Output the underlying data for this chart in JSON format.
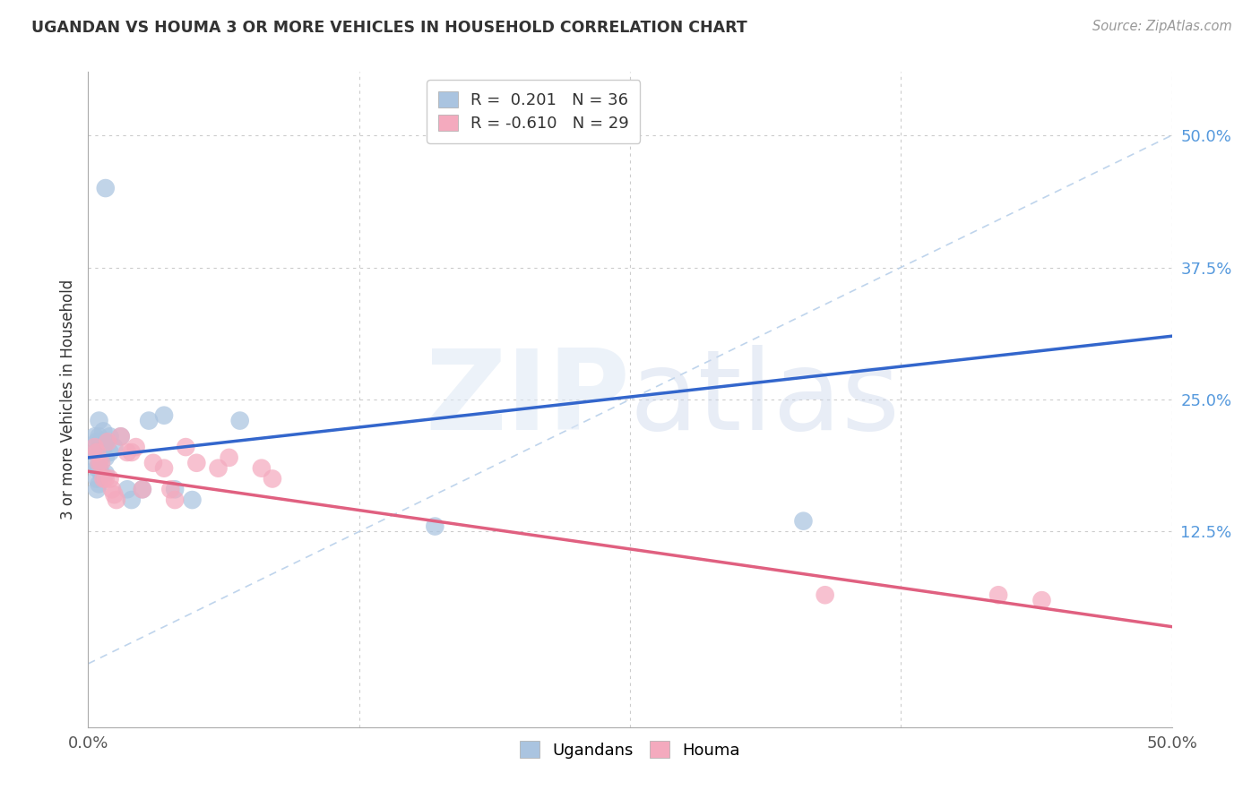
{
  "title": "UGANDAN VS HOUMA 3 OR MORE VEHICLES IN HOUSEHOLD CORRELATION CHART",
  "source": "Source: ZipAtlas.com",
  "ylabel": "3 or more Vehicles in Household",
  "xlim": [
    0.0,
    0.5
  ],
  "ylim": [
    -0.06,
    0.56
  ],
  "ugandan_color": "#aac4e0",
  "houma_color": "#f4aabe",
  "ugandan_line_color": "#3366cc",
  "houma_line_color": "#e06080",
  "trend_line_color": "#b8d0ea",
  "ugandan_line_x0": 0.0,
  "ugandan_line_y0": 0.195,
  "ugandan_line_x1": 0.5,
  "ugandan_line_y1": 0.31,
  "houma_line_x0": 0.0,
  "houma_line_y0": 0.182,
  "houma_line_x1": 0.5,
  "houma_line_y1": 0.035,
  "ugandan_x": [
    0.003,
    0.003,
    0.003,
    0.004,
    0.004,
    0.004,
    0.004,
    0.004,
    0.005,
    0.005,
    0.005,
    0.005,
    0.005,
    0.006,
    0.006,
    0.006,
    0.007,
    0.007,
    0.008,
    0.008,
    0.008,
    0.01,
    0.01,
    0.012,
    0.015,
    0.018,
    0.02,
    0.025,
    0.028,
    0.035,
    0.04,
    0.048,
    0.07,
    0.008,
    0.33,
    0.16
  ],
  "ugandan_y": [
    0.215,
    0.2,
    0.19,
    0.21,
    0.2,
    0.185,
    0.175,
    0.165,
    0.23,
    0.215,
    0.2,
    0.185,
    0.17,
    0.21,
    0.195,
    0.18,
    0.22,
    0.205,
    0.21,
    0.195,
    0.18,
    0.215,
    0.2,
    0.205,
    0.215,
    0.165,
    0.155,
    0.165,
    0.23,
    0.235,
    0.165,
    0.155,
    0.23,
    0.45,
    0.135,
    0.13
  ],
  "houma_x": [
    0.003,
    0.004,
    0.005,
    0.006,
    0.007,
    0.008,
    0.009,
    0.01,
    0.011,
    0.012,
    0.013,
    0.015,
    0.018,
    0.02,
    0.022,
    0.025,
    0.03,
    0.035,
    0.038,
    0.04,
    0.045,
    0.05,
    0.06,
    0.065,
    0.08,
    0.085,
    0.34,
    0.42,
    0.44
  ],
  "houma_y": [
    0.205,
    0.2,
    0.19,
    0.19,
    0.175,
    0.175,
    0.21,
    0.175,
    0.165,
    0.16,
    0.155,
    0.215,
    0.2,
    0.2,
    0.205,
    0.165,
    0.19,
    0.185,
    0.165,
    0.155,
    0.205,
    0.19,
    0.185,
    0.195,
    0.185,
    0.175,
    0.065,
    0.065,
    0.06
  ]
}
